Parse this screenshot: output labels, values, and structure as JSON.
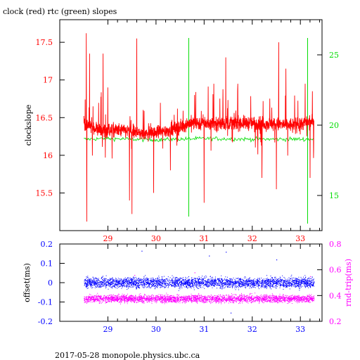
{
  "title": "clock (red) rtc (green) slopes",
  "footer": "2017-05-28  monopole.physics.ubc.ca",
  "colors": {
    "clock": "#ff0000",
    "rtc": "#00dd00",
    "offset": "#0000ff",
    "roundtrip": "#ff00ff",
    "axis": "#000000"
  },
  "chart_data": [
    {
      "type": "line",
      "title": "clock (red) rtc (green) slopes",
      "xlabel": "",
      "ylabel": "clockslope",
      "y2label": "",
      "xlim": [
        28.0,
        33.45
      ],
      "ylim": [
        15.0,
        17.8
      ],
      "y2lim": [
        12.5,
        27.5
      ],
      "xticks": [
        29,
        30,
        31,
        32,
        33
      ],
      "yticks": [
        15.5,
        16,
        16.5,
        17,
        17.5
      ],
      "y2ticks": [
        15,
        20,
        25
      ],
      "series": [
        {
          "axis": "left",
          "color": "#ff0000",
          "x_range": [
            28.5,
            33.28
          ],
          "baseline": [
            [
              28.5,
              16.43
            ],
            [
              28.85,
              16.33
            ],
            [
              29.3,
              16.33
            ],
            [
              29.8,
              16.28
            ],
            [
              30.4,
              16.35
            ],
            [
              30.7,
              16.43
            ],
            [
              31.2,
              16.42
            ],
            [
              31.8,
              16.43
            ],
            [
              32.3,
              16.42
            ],
            [
              32.8,
              16.4
            ],
            [
              33.28,
              16.45
            ]
          ],
          "spikes": [
            {
              "x": 28.55,
              "y": 17.62
            },
            {
              "x": 28.56,
              "y": 15.12
            },
            {
              "x": 28.62,
              "y": 17.35
            },
            {
              "x": 28.9,
              "y": 17.35
            },
            {
              "x": 29.0,
              "y": 16.9
            },
            {
              "x": 29.45,
              "y": 15.4
            },
            {
              "x": 29.5,
              "y": 15.22
            },
            {
              "x": 29.6,
              "y": 17.55
            },
            {
              "x": 29.95,
              "y": 15.5
            },
            {
              "x": 30.3,
              "y": 15.8
            },
            {
              "x": 30.8,
              "y": 16.8
            },
            {
              "x": 31.0,
              "y": 15.37
            },
            {
              "x": 31.2,
              "y": 16.95
            },
            {
              "x": 31.45,
              "y": 17.3
            },
            {
              "x": 31.7,
              "y": 16.95
            },
            {
              "x": 32.2,
              "y": 15.7
            },
            {
              "x": 32.5,
              "y": 15.55
            },
            {
              "x": 32.55,
              "y": 17.5
            },
            {
              "x": 32.7,
              "y": 17.15
            },
            {
              "x": 33.1,
              "y": 16.95
            },
            {
              "x": 33.2,
              "y": 15.7
            },
            {
              "x": 33.25,
              "y": 16.85
            }
          ]
        },
        {
          "axis": "right",
          "color": "#00dd00",
          "x_range": [
            28.5,
            33.28
          ],
          "baseline": [
            [
              28.5,
              19.0
            ],
            [
              29.0,
              19.05
            ],
            [
              30.0,
              18.95
            ],
            [
              31.0,
              19.05
            ],
            [
              32.0,
              19.0
            ],
            [
              33.28,
              19.0
            ]
          ],
          "spikes": [
            {
              "x": 30.68,
              "y": 26.2,
              "low": 13.5
            },
            {
              "x": 33.15,
              "y": 26.2,
              "low": 13.0
            }
          ]
        }
      ]
    },
    {
      "type": "scatter",
      "title": "",
      "xlabel": "",
      "ylabel": "offset(ms)",
      "y2label": "rnd-trip(ms)",
      "xlim": [
        28.0,
        33.45
      ],
      "ylim": [
        -0.2,
        0.2
      ],
      "y2lim": [
        0.2,
        0.8
      ],
      "xticks": [
        29,
        30,
        31,
        32,
        33
      ],
      "yticks": [
        -0.2,
        -0.1,
        0,
        0.1,
        0.2
      ],
      "y2ticks": [
        0.2,
        0.4,
        0.6,
        0.8
      ],
      "series": [
        {
          "axis": "left",
          "color": "#0000ff",
          "x_range": [
            28.5,
            33.28
          ],
          "center": 0.0,
          "spread": 0.045
        },
        {
          "axis": "right",
          "color": "#ff00ff",
          "x_range": [
            28.5,
            33.28
          ],
          "center": 0.375,
          "spread": 0.05
        }
      ],
      "outliers": [
        {
          "axis": "left",
          "x": 29.7,
          "y": 0.165
        },
        {
          "axis": "left",
          "x": 31.1,
          "y": 0.14
        },
        {
          "axis": "left",
          "x": 31.45,
          "y": 0.16
        },
        {
          "axis": "left",
          "x": 32.5,
          "y": 0.12
        },
        {
          "axis": "left",
          "x": 31.55,
          "y": -0.155
        },
        {
          "axis": "right",
          "x": 29.55,
          "y": 0.56
        },
        {
          "axis": "right",
          "x": 30.8,
          "y": 0.58
        },
        {
          "axis": "right",
          "x": 33.2,
          "y": 0.55
        }
      ]
    }
  ]
}
